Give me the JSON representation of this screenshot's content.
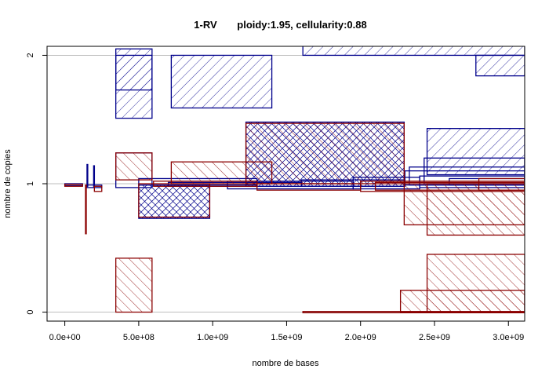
{
  "chart_data": {
    "type": "scatter",
    "title_sample": "1-RV",
    "title_params": "ploidy:1.95, cellularity:0.88",
    "xlabel": "nombre de bases",
    "ylabel": "nombre de copies",
    "xlim": [
      -120000000,
      3110000000
    ],
    "ylim": [
      -0.07,
      2.07
    ],
    "xticks": [
      {
        "v": 0,
        "label": "0.0e+00"
      },
      {
        "v": 500000000,
        "label": "5.0e+08"
      },
      {
        "v": 1000000000,
        "label": "1.0e+09"
      },
      {
        "v": 1500000000,
        "label": "1.5e+09"
      },
      {
        "v": 2000000000,
        "label": "2.0e+09"
      },
      {
        "v": 2500000000,
        "label": "2.5e+09"
      },
      {
        "v": 3000000000,
        "label": "3.0e+09"
      }
    ],
    "yticks": [
      {
        "v": 0,
        "label": "0"
      },
      {
        "v": 1,
        "label": "1"
      },
      {
        "v": 2,
        "label": "2"
      }
    ],
    "gridlines_y": [
      0,
      1,
      2
    ],
    "colors": {
      "major": "#00008b",
      "minor": "#8b0000",
      "grid": "#bebebe"
    },
    "segments": [
      {
        "series": "major",
        "x0": 0,
        "x1": 120000000,
        "y0": 0.985,
        "y1": 1.0,
        "hatch": "none"
      },
      {
        "series": "major",
        "x0": 150000000,
        "x1": 155000000,
        "y0": 0.98,
        "y1": 1.15,
        "hatch": "none"
      },
      {
        "series": "major",
        "x0": 195000000,
        "x1": 200000000,
        "y0": 0.97,
        "y1": 1.14,
        "hatch": "none"
      },
      {
        "series": "major",
        "x0": 150000000,
        "x1": 250000000,
        "y0": 0.97,
        "y1": 0.99,
        "hatch": "none"
      },
      {
        "series": "major",
        "x0": 345000000,
        "x1": 590000000,
        "y0": 1.51,
        "y1": 2.05,
        "hatch": "forward"
      },
      {
        "series": "major",
        "x0": 345000000,
        "x1": 590000000,
        "y0": 1.73,
        "y1": 2.0,
        "hatch": "forward"
      },
      {
        "series": "major",
        "x0": 720000000,
        "x1": 1400000000,
        "y0": 1.59,
        "y1": 2.0,
        "hatch": "forward"
      },
      {
        "series": "major",
        "x0": 1610000000,
        "x1": 3110000000,
        "y0": 2.0,
        "y1": 2.08,
        "hatch": "forward"
      },
      {
        "series": "major",
        "x0": 2780000000,
        "x1": 3110000000,
        "y0": 1.84,
        "y1": 2.0,
        "hatch": "forward"
      },
      {
        "series": "major",
        "x0": 1225000000,
        "x1": 2295000000,
        "y0": 0.98,
        "y1": 1.48,
        "hatch": "cross"
      },
      {
        "series": "major",
        "x0": 2450000000,
        "x1": 3110000000,
        "y0": 1.07,
        "y1": 1.43,
        "hatch": "forward"
      },
      {
        "series": "major",
        "x0": 2430000000,
        "x1": 3110000000,
        "y0": 1.0,
        "y1": 1.2,
        "hatch": "none"
      },
      {
        "series": "major",
        "x0": 2330000000,
        "x1": 3110000000,
        "y0": 0.99,
        "y1": 1.13,
        "hatch": "none"
      },
      {
        "series": "major",
        "x0": 2300000000,
        "x1": 3110000000,
        "y0": 0.99,
        "y1": 1.1,
        "hatch": "none"
      },
      {
        "series": "major",
        "x0": 500000000,
        "x1": 980000000,
        "y0": 0.73,
        "y1": 0.99,
        "hatch": "cross"
      },
      {
        "series": "major",
        "x0": 345000000,
        "x1": 590000000,
        "y0": 0.97,
        "y1": 1.24,
        "hatch": "none"
      },
      {
        "series": "major",
        "x0": 500000000,
        "x1": 1300000000,
        "y0": 0.99,
        "y1": 1.04,
        "hatch": "none"
      },
      {
        "series": "major",
        "x0": 1100000000,
        "x1": 1950000000,
        "y0": 0.96,
        "y1": 1.02,
        "hatch": "none"
      },
      {
        "series": "major",
        "x0": 1950000000,
        "x1": 2400000000,
        "y0": 0.96,
        "y1": 1.05,
        "hatch": "none"
      },
      {
        "series": "major",
        "x0": 2400000000,
        "x1": 3110000000,
        "y0": 0.97,
        "y1": 1.06,
        "hatch": "none"
      },
      {
        "series": "major",
        "x0": 700000000,
        "x1": 1600000000,
        "y0": 0.98,
        "y1": 1.01,
        "hatch": "none"
      },
      {
        "series": "major",
        "x0": 1600000000,
        "x1": 2300000000,
        "y0": 0.98,
        "y1": 1.03,
        "hatch": "none"
      },
      {
        "series": "major",
        "x0": 2600000000,
        "x1": 3110000000,
        "y0": 0.99,
        "y1": 1.04,
        "hatch": "none"
      },
      {
        "series": "minor",
        "x0": 0,
        "x1": 120000000,
        "y0": 0.98,
        "y1": 0.995,
        "hatch": "none"
      },
      {
        "series": "minor",
        "x0": 140000000,
        "x1": 145000000,
        "y0": 0.61,
        "y1": 0.99,
        "hatch": "none"
      },
      {
        "series": "minor",
        "x0": 200000000,
        "x1": 250000000,
        "y0": 0.94,
        "y1": 0.98,
        "hatch": "none"
      },
      {
        "series": "minor",
        "x0": 345000000,
        "x1": 590000000,
        "y0": 0.0,
        "y1": 0.42,
        "hatch": "back"
      },
      {
        "series": "minor",
        "x0": 345000000,
        "x1": 590000000,
        "y0": 1.03,
        "y1": 1.24,
        "hatch": "back"
      },
      {
        "series": "minor",
        "x0": 720000000,
        "x1": 1400000000,
        "y0": 1.0,
        "y1": 1.17,
        "hatch": "back"
      },
      {
        "series": "minor",
        "x0": 1225000000,
        "x1": 2295000000,
        "y0": 1.0,
        "y1": 1.47,
        "hatch": "back"
      },
      {
        "series": "minor",
        "x0": 2295000000,
        "x1": 3110000000,
        "y0": 0.68,
        "y1": 1.0,
        "hatch": "back"
      },
      {
        "series": "minor",
        "x0": 2450000000,
        "x1": 3110000000,
        "y0": 0.6,
        "y1": 1.0,
        "hatch": "back"
      },
      {
        "series": "minor",
        "x0": 2450000000,
        "x1": 3110000000,
        "y0": 0.0,
        "y1": 0.45,
        "hatch": "back"
      },
      {
        "series": "minor",
        "x0": 2270000000,
        "x1": 3110000000,
        "y0": 0.0,
        "y1": 0.17,
        "hatch": "back"
      },
      {
        "series": "minor",
        "x0": 1610000000,
        "x1": 3110000000,
        "y0": -0.005,
        "y1": 0.005,
        "hatch": "none"
      },
      {
        "series": "minor",
        "x0": 500000000,
        "x1": 980000000,
        "y0": 0.74,
        "y1": 1.0,
        "hatch": "none"
      },
      {
        "series": "minor",
        "x0": 600000000,
        "x1": 1300000000,
        "y0": 0.98,
        "y1": 1.02,
        "hatch": "none"
      },
      {
        "series": "minor",
        "x0": 1300000000,
        "x1": 2000000000,
        "y0": 0.95,
        "y1": 1.0,
        "hatch": "none"
      },
      {
        "series": "minor",
        "x0": 2000000000,
        "x1": 3110000000,
        "y0": 0.94,
        "y1": 1.02,
        "hatch": "none"
      },
      {
        "series": "minor",
        "x0": 2100000000,
        "x1": 3110000000,
        "y0": 0.95,
        "y1": 1.01,
        "hatch": "none"
      },
      {
        "series": "minor",
        "x0": 2800000000,
        "x1": 3110000000,
        "y0": 0.95,
        "y1": 1.04,
        "hatch": "none"
      }
    ]
  }
}
